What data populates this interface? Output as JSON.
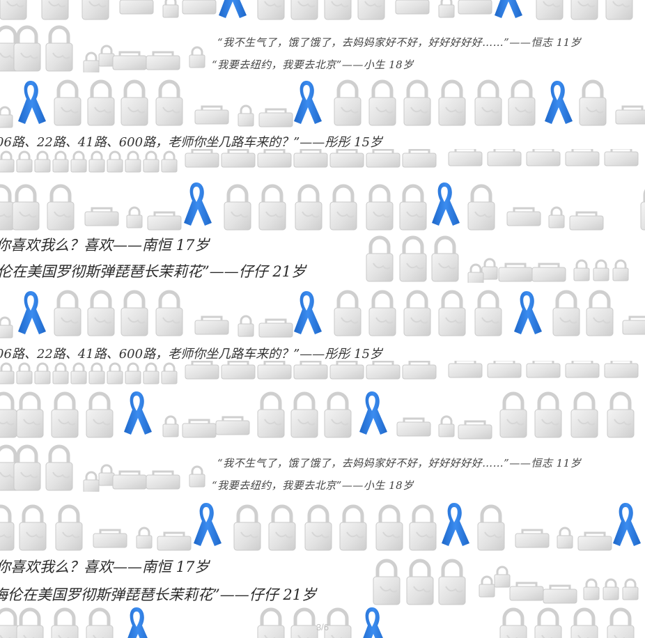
{
  "quotes": {
    "hengzhi": "“我不生气了，饿了饿了，去妈妈家好不好，好好好好好……”——恒志 11岁",
    "xiaosheng": "“我要去纽约，我要去北京”——小生 18岁",
    "tongtong": "06路、22路、41路、600路，老师你坐几路车来的？”——彤彤 15岁",
    "nanheng_a": "你喜欢我么？喜欢——南恒 17岁",
    "zaizai_a": "伦在美国罗彻斯弹琵琶长茉莉花”——仔仔 21岁",
    "nanheng_b": "你喜欢我么？喜欢——南恒 17岁",
    "zaizai_b": "海伦在美国罗彻斯弹琵琶长茉莉花”——仔仔 21岁"
  },
  "pager": "3/6",
  "colors": {
    "ribbon": "#2f7fe0",
    "lock_body": "#e6e6e6",
    "lock_shackle": "#cfcfcf"
  },
  "icons": [
    "padlock-icon",
    "awareness-ribbon-icon",
    "small-padlock-icon"
  ]
}
